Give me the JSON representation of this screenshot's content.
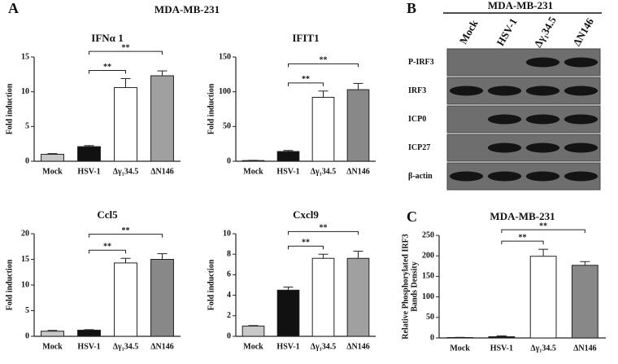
{
  "panels": [
    {
      "letter": "A",
      "title": "MDA-MB-231"
    },
    {
      "letter": "B"
    },
    {
      "letter": "C"
    }
  ],
  "chart_data": [
    {
      "type": "bar",
      "title": "IFNα 1",
      "ylabel": [
        "Fold induction"
      ],
      "categories": [
        "Mock",
        "HSV-1",
        "Δγ₁34.5",
        "ΔN146"
      ],
      "values": [
        1.0,
        2.1,
        10.6,
        12.3
      ],
      "errors": [
        0.1,
        0.15,
        1.3,
        0.7
      ],
      "colors": [
        "#c8c8c8",
        "#111111",
        "#ffffff",
        "#a0a0a0"
      ],
      "ylim": [
        0,
        15
      ],
      "yticks": [
        0,
        5,
        10,
        15
      ],
      "brackets": [
        {
          "label": "**",
          "categories": [
            1,
            2
          ]
        },
        {
          "label": "**",
          "categories": [
            1,
            3
          ]
        }
      ]
    },
    {
      "type": "bar",
      "title": "IFIT1",
      "ylabel": [
        "Fold induction"
      ],
      "categories": [
        "Mock",
        "HSV-1",
        "Δγ₁34.5",
        "ΔN146"
      ],
      "values": [
        1,
        14,
        92,
        103
      ],
      "errors": [
        0.3,
        1.5,
        9,
        9
      ],
      "colors": [
        "#c8c8c8",
        "#111111",
        "#ffffff",
        "#888888"
      ],
      "ylim": [
        0,
        150
      ],
      "yticks": [
        0,
        50,
        100,
        150
      ],
      "brackets": [
        {
          "label": "**",
          "categories": [
            1,
            2
          ]
        },
        {
          "label": "**",
          "categories": [
            1,
            3
          ]
        }
      ]
    },
    {
      "type": "bar",
      "title": "Ccl5",
      "ylabel": [
        "Fold induction"
      ],
      "categories": [
        "Mock",
        "HSV-1",
        "Δγ₁34.5",
        "ΔN146"
      ],
      "values": [
        1.0,
        1.2,
        14.3,
        15.0
      ],
      "errors": [
        0.15,
        0.1,
        0.9,
        1.1
      ],
      "colors": [
        "#c8c8c8",
        "#111111",
        "#ffffff",
        "#888888"
      ],
      "ylim": [
        0,
        20
      ],
      "yticks": [
        0,
        5,
        10,
        15,
        20
      ],
      "brackets": [
        {
          "label": "**",
          "categories": [
            1,
            2
          ]
        },
        {
          "label": "**",
          "categories": [
            1,
            3
          ]
        }
      ]
    },
    {
      "type": "bar",
      "title": "Cxcl9",
      "ylabel": [
        "Fold induction"
      ],
      "categories": [
        "Mock",
        "HSV-1",
        "Δγ₁34.5",
        "ΔN146"
      ],
      "values": [
        1.0,
        4.5,
        7.6,
        7.6
      ],
      "errors": [
        0.05,
        0.3,
        0.4,
        0.7
      ],
      "colors": [
        "#c8c8c8",
        "#111111",
        "#ffffff",
        "#a0a0a0"
      ],
      "ylim": [
        0,
        10
      ],
      "yticks": [
        0,
        2,
        4,
        6,
        8,
        10
      ],
      "brackets": [
        {
          "label": "**",
          "categories": [
            1,
            2
          ]
        },
        {
          "label": "**",
          "categories": [
            1,
            3
          ]
        }
      ]
    },
    {
      "type": "bar",
      "title": "MDA-MB-231",
      "ylabel": [
        "Relative Phosphorylated IRF3",
        "Bands Density"
      ],
      "categories": [
        "Mock",
        "HSV-1",
        "Δγ₁34.5",
        "ΔN146"
      ],
      "values": [
        1,
        3,
        199,
        177
      ],
      "errors": [
        0.5,
        2,
        17,
        9
      ],
      "colors": [
        "#c8c8c8",
        "#111111",
        "#ffffff",
        "#888888"
      ],
      "ylim": [
        0,
        250
      ],
      "yticks": [
        0,
        50,
        100,
        150,
        200,
        250
      ],
      "brackets": [
        {
          "label": "**",
          "categories": [
            1,
            2
          ]
        },
        {
          "label": "**",
          "categories": [
            1,
            3
          ]
        }
      ]
    }
  ],
  "blot": {
    "title": "MDA-MB-231",
    "lanes": [
      "Mock",
      "HSV-1",
      "Δγ₁34.5",
      "ΔN146"
    ],
    "rows": [
      {
        "label": "P-IRF3",
        "bands": [
          0,
          0,
          1,
          1
        ]
      },
      {
        "label": "IRF3",
        "bands": [
          1,
          1,
          1,
          1
        ]
      },
      {
        "label": "ICP0",
        "bands": [
          0,
          1,
          1,
          1
        ]
      },
      {
        "label": "ICP27",
        "bands": [
          0,
          1,
          1,
          1
        ]
      },
      {
        "label": "β-actin",
        "bands": [
          1,
          1,
          1,
          1
        ]
      }
    ]
  }
}
